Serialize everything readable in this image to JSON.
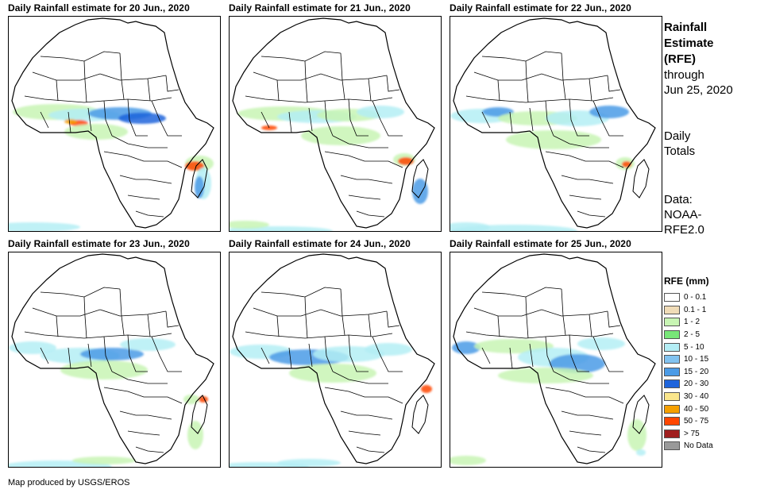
{
  "panels": [
    {
      "title": "Daily Rainfall estimate for 20 Jun., 2020"
    },
    {
      "title": "Daily Rainfall estimate for 21 Jun., 2020"
    },
    {
      "title": "Daily Rainfall estimate for 22 Jun., 2020"
    },
    {
      "title": "Daily Rainfall estimate for 23 Jun., 2020"
    },
    {
      "title": "Daily Rainfall estimate for 24 Jun., 2020"
    },
    {
      "title": "Daily Rainfall estimate for 25 Jun., 2020"
    }
  ],
  "side": {
    "title": "Rainfall\nEstimate\n(RFE)",
    "through": "through\nJun 25, 2020",
    "totals": "Daily\nTotals",
    "source": "Data:\nNOAA-\nRFE2.0"
  },
  "legend": {
    "title": "RFE (mm)",
    "items": [
      {
        "label": "0 - 0.1",
        "color": "#ffffff"
      },
      {
        "label": "0.1 - 1",
        "color": "#f0dcb8"
      },
      {
        "label": "1 - 2",
        "color": "#c8f5b4"
      },
      {
        "label": "2 - 5",
        "color": "#78e678"
      },
      {
        "label": "5 - 10",
        "color": "#b4eef5"
      },
      {
        "label": "10 - 15",
        "color": "#82c3f0"
      },
      {
        "label": "15 - 20",
        "color": "#4b9be6"
      },
      {
        "label": "20 - 30",
        "color": "#1e64dc"
      },
      {
        "label": "30 - 40",
        "color": "#fae68c"
      },
      {
        "label": "40 - 50",
        "color": "#f5a000"
      },
      {
        "label": "50 - 75",
        "color": "#ff4600"
      },
      {
        "label": "> 75",
        "color": "#a01e1e"
      },
      {
        "label": "No Data",
        "color": "#999999"
      }
    ]
  },
  "credit": "Map produced by USGS/EROS"
}
